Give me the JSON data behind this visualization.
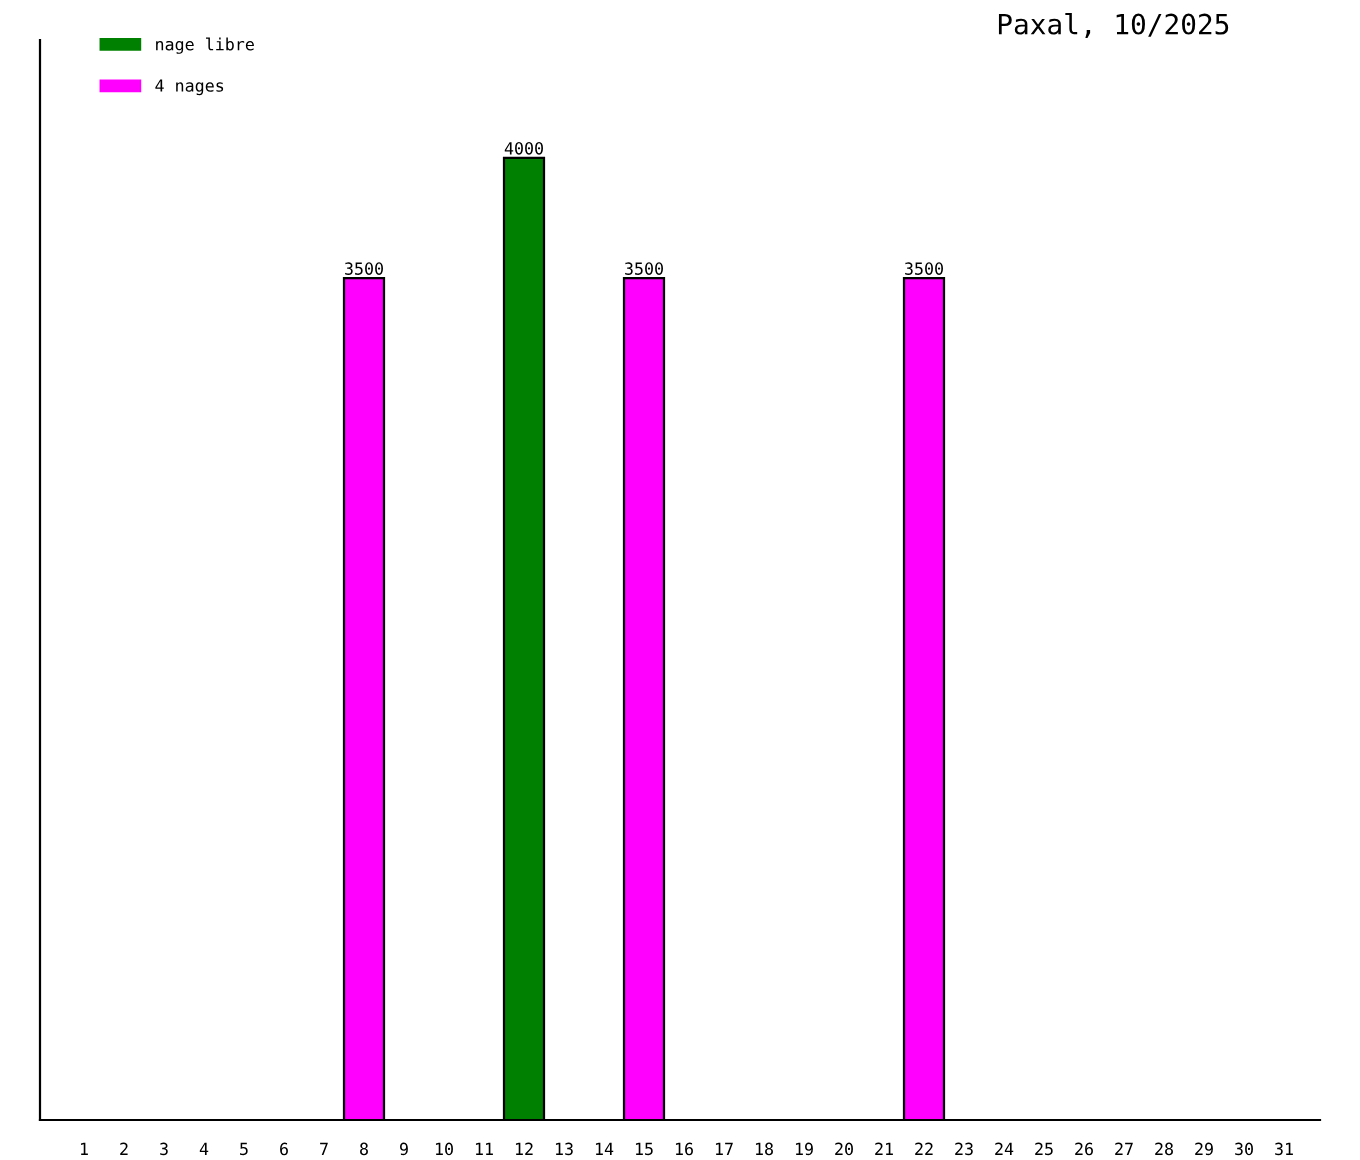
{
  "chart_data": {
    "type": "bar",
    "title": "Paxal, 10/2025",
    "categories": [
      "1",
      "2",
      "3",
      "4",
      "5",
      "6",
      "7",
      "8",
      "9",
      "10",
      "11",
      "12",
      "13",
      "14",
      "15",
      "16",
      "17",
      "18",
      "19",
      "20",
      "21",
      "22",
      "23",
      "24",
      "25",
      "26",
      "27",
      "28",
      "29",
      "30",
      "31"
    ],
    "series": [
      {
        "name": "nage libre",
        "color": "#008000",
        "values": [
          null,
          null,
          null,
          null,
          null,
          null,
          null,
          null,
          null,
          null,
          null,
          4000,
          null,
          null,
          null,
          null,
          null,
          null,
          null,
          null,
          null,
          null,
          null,
          null,
          null,
          null,
          null,
          null,
          null,
          null,
          null
        ]
      },
      {
        "name": "4 nages",
        "color": "#ff00ff",
        "values": [
          null,
          null,
          null,
          null,
          null,
          null,
          null,
          3500,
          null,
          null,
          null,
          null,
          null,
          null,
          3500,
          null,
          null,
          null,
          null,
          null,
          null,
          3500,
          null,
          null,
          null,
          null,
          null,
          null,
          null,
          null,
          null
        ]
      }
    ],
    "stacked": true,
    "ylim": [
      0,
      4490
    ],
    "data_labels": true,
    "legend": "top left",
    "grid": false,
    "tick_labels": "x"
  }
}
